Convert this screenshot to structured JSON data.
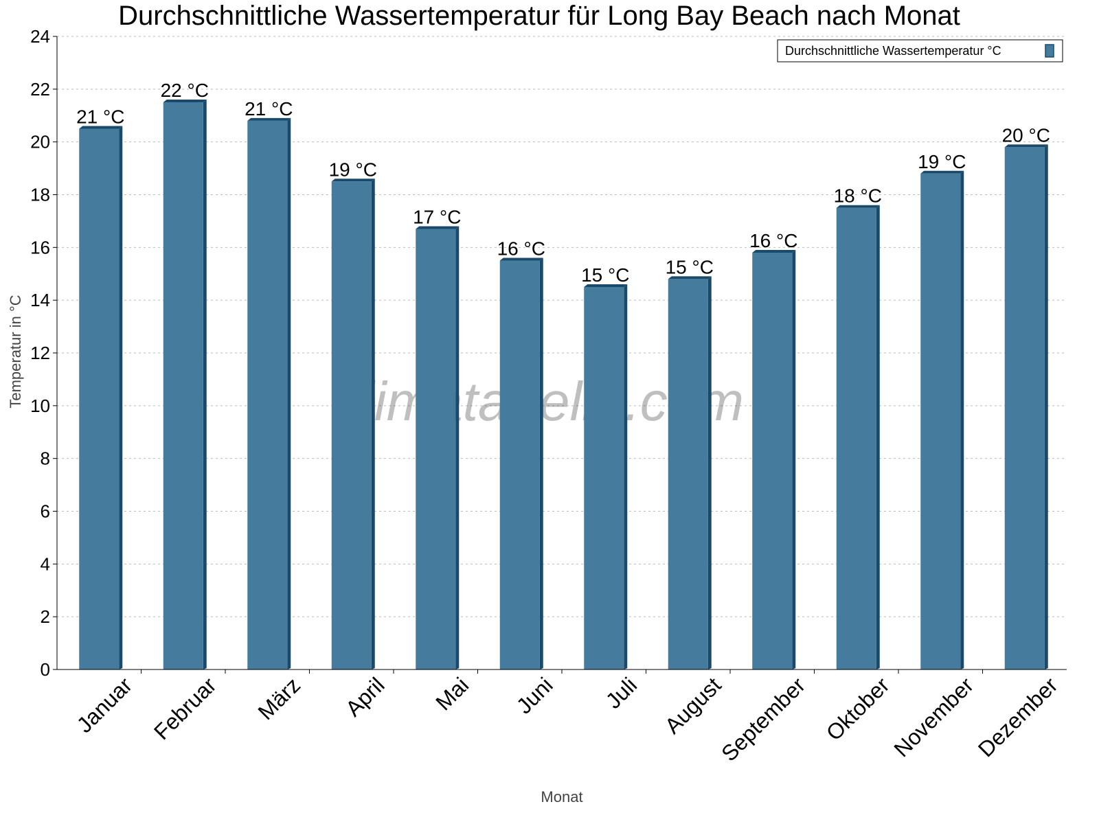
{
  "chart_data": {
    "type": "bar",
    "title": "Durchschnittliche Wassertemperatur für Long Bay Beach nach Monat",
    "xlabel": "Monat",
    "ylabel": "Temperatur in °C",
    "ylim": [
      0,
      24
    ],
    "yticks": [
      0,
      2,
      4,
      6,
      8,
      10,
      12,
      14,
      16,
      18,
      20,
      22,
      24
    ],
    "grid": true,
    "legend_placement": "top-right",
    "watermark": "klimatabelle.com",
    "categories": [
      "Januar",
      "Februar",
      "März",
      "April",
      "Mai",
      "Juni",
      "Juli",
      "August",
      "September",
      "Oktober",
      "November",
      "Dezember"
    ],
    "series": [
      {
        "name": "Durchschnittliche Wassertemperatur °C",
        "color": "#457b9d",
        "values": [
          20.5,
          21.5,
          20.8,
          18.5,
          16.7,
          15.5,
          14.5,
          14.8,
          15.8,
          17.5,
          18.8,
          19.8
        ],
        "labels": [
          "21 °C",
          "22 °C",
          "21 °C",
          "19 °C",
          "17 °C",
          "16 °C",
          "15 °C",
          "15 °C",
          "16 °C",
          "18 °C",
          "19 °C",
          "20 °C"
        ]
      }
    ]
  }
}
